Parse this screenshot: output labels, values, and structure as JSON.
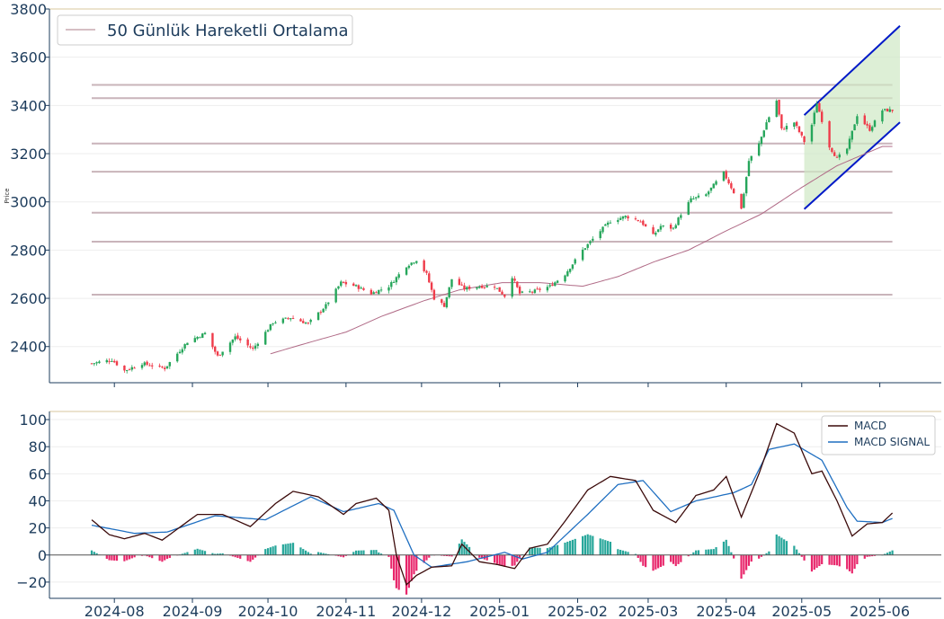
{
  "chart_data": [
    {
      "type": "candlestick",
      "panel": "price",
      "ylabel": "Price",
      "ylim": [
        2250,
        3800
      ],
      "yticks": [
        2400,
        2600,
        2800,
        3000,
        3200,
        3400,
        3600,
        3800
      ],
      "ytick_labels": [
        "2400",
        "2600",
        "2800",
        "3000",
        "3200",
        "3400",
        "3600",
        "3800"
      ],
      "grid": true,
      "legend": {
        "position": "top-left",
        "entries": [
          {
            "label": "50 Günlük Hareketli Ortalama",
            "color": "#c8a9b0"
          }
        ]
      },
      "colors": {
        "up": "#26a65b",
        "down": "#ef3b4a",
        "ma": "#b06a86",
        "level": "#c9b4ba",
        "channel": "#0019c8",
        "channel_fill": "#cfe8c4"
      },
      "horizontal_levels": [
        2615,
        2835,
        2955,
        3125,
        3242,
        3430,
        3485
      ],
      "close_anchors": [
        [
          "2024-07-23",
          2330
        ],
        [
          "2024-07-31",
          2345
        ],
        [
          "2024-08-05",
          2300
        ],
        [
          "2024-08-12",
          2330
        ],
        [
          "2024-08-21",
          2310
        ],
        [
          "2024-08-30",
          2420
        ],
        [
          "2024-09-06",
          2455
        ],
        [
          "2024-09-11",
          2360
        ],
        [
          "2024-09-18",
          2440
        ],
        [
          "2024-09-25",
          2390
        ],
        [
          "2024-10-03",
          2500
        ],
        [
          "2024-10-10",
          2520
        ],
        [
          "2024-10-17",
          2495
        ],
        [
          "2024-10-24",
          2570
        ],
        [
          "2024-10-30",
          2665
        ],
        [
          "2024-11-05",
          2650
        ],
        [
          "2024-11-11",
          2620
        ],
        [
          "2024-11-18",
          2650
        ],
        [
          "2024-11-25",
          2735
        ],
        [
          "2024-11-29",
          2760
        ],
        [
          "2024-12-03",
          2700
        ],
        [
          "2024-12-06",
          2600
        ],
        [
          "2024-12-10",
          2570
        ],
        [
          "2024-12-13",
          2680
        ],
        [
          "2024-12-18",
          2640
        ],
        [
          "2024-12-24",
          2650
        ],
        [
          "2024-12-30",
          2650
        ],
        [
          "2025-01-03",
          2610
        ],
        [
          "2025-01-06",
          2690
        ],
        [
          "2025-01-09",
          2620
        ],
        [
          "2025-01-15",
          2630
        ],
        [
          "2025-01-21",
          2650
        ],
        [
          "2025-01-27",
          2700
        ],
        [
          "2025-02-03",
          2800
        ],
        [
          "2025-02-10",
          2880
        ],
        [
          "2025-02-14",
          2920
        ],
        [
          "2025-02-20",
          2940
        ],
        [
          "2025-02-26",
          2920
        ],
        [
          "2025-03-03",
          2860
        ],
        [
          "2025-03-06",
          2900
        ],
        [
          "2025-03-11",
          2890
        ],
        [
          "2025-03-14",
          2950
        ],
        [
          "2025-03-18",
          3010
        ],
        [
          "2025-03-24",
          3030
        ],
        [
          "2025-03-31",
          3120
        ],
        [
          "2025-04-04",
          3040
        ],
        [
          "2025-04-07",
          2970
        ],
        [
          "2025-04-10",
          3170
        ],
        [
          "2025-04-14",
          3240
        ],
        [
          "2025-04-17",
          3330
        ],
        [
          "2025-04-21",
          3420
        ],
        [
          "2025-04-23",
          3300
        ],
        [
          "2025-04-28",
          3330
        ],
        [
          "2025-05-02",
          3250
        ],
        [
          "2025-05-05",
          3320
        ],
        [
          "2025-05-07",
          3410
        ],
        [
          "2025-05-12",
          3230
        ],
        [
          "2025-05-15",
          3180
        ],
        [
          "2025-05-19",
          3220
        ],
        [
          "2025-05-23",
          3360
        ],
        [
          "2025-05-28",
          3300
        ],
        [
          "2025-06-02",
          3380
        ]
      ],
      "ma50_anchors": [
        [
          "2024-10-02",
          2370
        ],
        [
          "2024-10-15",
          2410
        ],
        [
          "2024-11-01",
          2460
        ],
        [
          "2024-11-15",
          2525
        ],
        [
          "2024-12-02",
          2590
        ],
        [
          "2024-12-16",
          2635
        ],
        [
          "2025-01-02",
          2665
        ],
        [
          "2025-01-17",
          2665
        ],
        [
          "2025-02-03",
          2650
        ],
        [
          "2025-02-17",
          2690
        ],
        [
          "2025-03-03",
          2750
        ],
        [
          "2025-03-17",
          2800
        ],
        [
          "2025-04-01",
          2880
        ],
        [
          "2025-04-15",
          2950
        ],
        [
          "2025-05-01",
          3060
        ],
        [
          "2025-05-15",
          3150
        ],
        [
          "2025-06-02",
          3230
        ]
      ],
      "channel": {
        "upper": [
          [
            "2025-05-02",
            3360
          ],
          [
            "2025-06-09",
            3730
          ]
        ],
        "lower": [
          [
            "2025-05-02",
            2970
          ],
          [
            "2025-06-09",
            3330
          ]
        ]
      }
    },
    {
      "type": "line+bar",
      "panel": "macd",
      "ylim": [
        -32,
        106
      ],
      "yticks": [
        -20,
        0,
        20,
        40,
        60,
        80,
        100
      ],
      "ytick_labels": [
        "−20",
        "0",
        "20",
        "40",
        "60",
        "80",
        "100"
      ],
      "grid": true,
      "legend": {
        "position": "top-right",
        "entries": [
          {
            "label": "MACD",
            "color": "#3b0a0a"
          },
          {
            "label": "MACD SIGNAL",
            "color": "#1f6fc1"
          }
        ]
      },
      "colors": {
        "hist_pos": "#26a69a",
        "hist_neg": "#e8266b"
      },
      "macd_anchors": [
        [
          "2024-07-23",
          26
        ],
        [
          "2024-07-30",
          15
        ],
        [
          "2024-08-05",
          12
        ],
        [
          "2024-08-13",
          16
        ],
        [
          "2024-08-20",
          11
        ],
        [
          "2024-09-03",
          30
        ],
        [
          "2024-09-13",
          30
        ],
        [
          "2024-09-24",
          21
        ],
        [
          "2024-10-04",
          38
        ],
        [
          "2024-10-11",
          47
        ],
        [
          "2024-10-21",
          43
        ],
        [
          "2024-10-31",
          30
        ],
        [
          "2024-11-05",
          38
        ],
        [
          "2024-11-13",
          42
        ],
        [
          "2024-11-18",
          33
        ],
        [
          "2024-11-21",
          0
        ],
        [
          "2024-11-25",
          -22
        ],
        [
          "2024-11-29",
          -15
        ],
        [
          "2024-12-05",
          -9
        ],
        [
          "2024-12-13",
          -8
        ],
        [
          "2024-12-17",
          8
        ],
        [
          "2024-12-24",
          -5
        ],
        [
          "2024-12-31",
          -7
        ],
        [
          "2025-01-07",
          -10
        ],
        [
          "2025-01-13",
          5
        ],
        [
          "2025-01-20",
          8
        ],
        [
          "2025-01-27",
          25
        ],
        [
          "2025-02-05",
          48
        ],
        [
          "2025-02-14",
          58
        ],
        [
          "2025-02-24",
          55
        ],
        [
          "2025-03-03",
          33
        ],
        [
          "2025-03-12",
          24
        ],
        [
          "2025-03-20",
          44
        ],
        [
          "2025-03-27",
          48
        ],
        [
          "2025-04-01",
          58
        ],
        [
          "2025-04-07",
          28
        ],
        [
          "2025-04-14",
          60
        ],
        [
          "2025-04-21",
          97
        ],
        [
          "2025-04-28",
          90
        ],
        [
          "2025-05-05",
          60
        ],
        [
          "2025-05-09",
          62
        ],
        [
          "2025-05-15",
          40
        ],
        [
          "2025-05-21",
          14
        ],
        [
          "2025-05-27",
          23
        ],
        [
          "2025-06-02",
          24
        ],
        [
          "2025-06-06",
          31
        ]
      ],
      "signal_anchors": [
        [
          "2024-07-23",
          22
        ],
        [
          "2024-08-09",
          16
        ],
        [
          "2024-08-22",
          17
        ],
        [
          "2024-09-10",
          29
        ],
        [
          "2024-09-30",
          26
        ],
        [
          "2024-10-18",
          43
        ],
        [
          "2024-10-31",
          32
        ],
        [
          "2024-11-14",
          38
        ],
        [
          "2024-11-20",
          33
        ],
        [
          "2024-11-28",
          0
        ],
        [
          "2024-12-05",
          -9
        ],
        [
          "2024-12-19",
          -5
        ],
        [
          "2025-01-03",
          2
        ],
        [
          "2025-01-10",
          -3
        ],
        [
          "2025-01-20",
          2
        ],
        [
          "2025-02-05",
          30
        ],
        [
          "2025-02-17",
          52
        ],
        [
          "2025-02-27",
          55
        ],
        [
          "2025-03-10",
          32
        ],
        [
          "2025-03-20",
          40
        ],
        [
          "2025-04-04",
          46
        ],
        [
          "2025-04-11",
          52
        ],
        [
          "2025-04-18",
          78
        ],
        [
          "2025-04-28",
          82
        ],
        [
          "2025-05-09",
          70
        ],
        [
          "2025-05-19",
          35
        ],
        [
          "2025-05-23",
          25
        ],
        [
          "2025-06-02",
          24
        ],
        [
          "2025-06-06",
          27
        ]
      ]
    }
  ],
  "xaxis": {
    "tick_dates": [
      "2024-08-01",
      "2024-09-01",
      "2024-10-01",
      "2024-11-01",
      "2024-12-01",
      "2025-01-01",
      "2025-02-01",
      "2025-03-01",
      "2025-04-01",
      "2025-05-01",
      "2025-06-01"
    ],
    "tick_labels": [
      "2024-08",
      "2024-09",
      "2024-10",
      "2024-11",
      "2024-12",
      "2025-01",
      "2025-02",
      "2025-03",
      "2025-04",
      "2025-05",
      "2025-06"
    ]
  }
}
